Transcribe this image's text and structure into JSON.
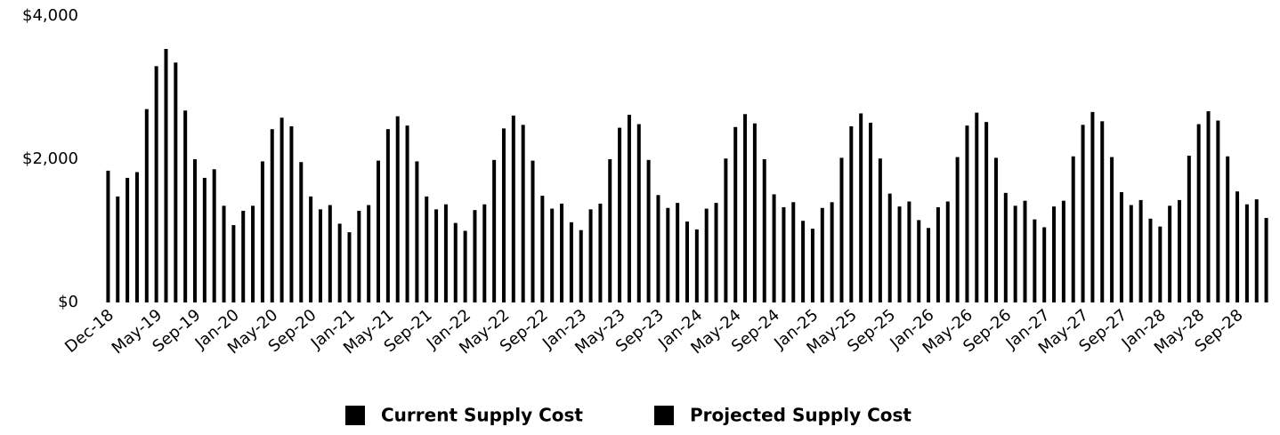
{
  "chart_data": {
    "type": "bar",
    "categories": [
      "Dec-18",
      null,
      null,
      null,
      null,
      "May-19",
      null,
      null,
      null,
      "Sep-19",
      null,
      null,
      null,
      "Jan-20",
      null,
      null,
      null,
      "May-20",
      null,
      null,
      null,
      "Sep-20",
      null,
      null,
      null,
      "Jan-21",
      null,
      null,
      null,
      "May-21",
      null,
      null,
      null,
      "Sep-21",
      null,
      null,
      null,
      "Jan-22",
      null,
      null,
      null,
      "May-22",
      null,
      null,
      null,
      "Sep-22",
      null,
      null,
      null,
      "Jan-23",
      null,
      null,
      null,
      "May-23",
      null,
      null,
      null,
      "Sep-23",
      null,
      null,
      null,
      "Jan-24",
      null,
      null,
      null,
      "May-24",
      null,
      null,
      null,
      "Sep-24",
      null,
      null,
      null,
      "Jan-25",
      null,
      null,
      null,
      "May-25",
      null,
      null,
      null,
      "Sep-25",
      null,
      null,
      null,
      "Jan-26",
      null,
      null,
      null,
      "May-26",
      null,
      null,
      null,
      "Sep-26",
      null,
      null,
      null,
      "Jan-27",
      null,
      null,
      null,
      "May-27",
      null,
      null,
      null,
      "Sep-27",
      null,
      null,
      null,
      "Jan-28",
      null,
      null,
      null,
      "May-28",
      null,
      null,
      null,
      "Sep-28",
      null,
      null,
      null
    ],
    "series": [
      {
        "name": "Current Supply Cost",
        "color": "#000000",
        "values": [
          1840,
          1480,
          1740,
          1820,
          2700,
          3300,
          3540,
          3350,
          2680,
          2000,
          1740,
          1860,
          1350,
          null,
          null,
          null,
          null,
          null,
          null,
          null,
          null,
          null,
          null,
          null,
          null,
          null,
          null,
          null,
          null,
          null,
          null,
          null,
          null,
          null,
          null,
          null,
          null,
          null,
          null,
          null,
          null,
          null,
          null,
          null,
          null,
          null,
          null,
          null,
          null,
          null,
          null,
          null,
          null,
          null,
          null,
          null,
          null,
          null,
          null,
          null,
          null,
          null,
          null,
          null,
          null,
          null,
          null,
          null,
          null,
          null,
          null,
          null,
          null,
          null,
          null,
          null,
          null,
          null,
          null,
          null,
          null,
          null,
          null,
          null,
          null,
          null,
          null,
          null,
          null,
          null,
          null,
          null,
          null,
          null,
          null,
          null,
          null,
          null,
          null,
          null,
          null,
          null,
          null,
          null,
          null,
          null,
          null,
          null,
          null,
          null,
          null,
          null,
          null,
          null,
          null,
          null,
          null,
          null,
          null,
          null,
          null
        ]
      },
      {
        "name": "Projected Supply Cost",
        "color": "#000000",
        "values": [
          null,
          null,
          null,
          null,
          null,
          null,
          null,
          null,
          null,
          null,
          null,
          null,
          null,
          1080,
          1280,
          1350,
          1970,
          2420,
          2580,
          2460,
          1960,
          1480,
          1300,
          1360,
          1100,
          980,
          1280,
          1360,
          1980,
          2420,
          2600,
          2470,
          1970,
          1480,
          1300,
          1370,
          1110,
          1000,
          1290,
          1370,
          1990,
          2430,
          2610,
          2480,
          1980,
          1490,
          1310,
          1380,
          1120,
          1010,
          1300,
          1380,
          2000,
          2440,
          2620,
          2490,
          1990,
          1500,
          1320,
          1390,
          1130,
          1020,
          1310,
          1390,
          2010,
          2450,
          2630,
          2500,
          2000,
          1510,
          1330,
          1400,
          1140,
          1030,
          1320,
          1400,
          2020,
          2460,
          2640,
          2510,
          2010,
          1520,
          1340,
          1410,
          1150,
          1040,
          1330,
          1410,
          2030,
          2470,
          2650,
          2520,
          2020,
          1530,
          1350,
          1420,
          1160,
          1050,
          1340,
          1420,
          2040,
          2480,
          2660,
          2530,
          2030,
          1540,
          1360,
          1430,
          1170,
          1060,
          1350,
          1430,
          2050,
          2490,
          2670,
          2540,
          2040,
          1550,
          1370,
          1440,
          1180
        ]
      }
    ],
    "ylim": [
      0,
      4000
    ],
    "yticks": [
      {
        "value": 0,
        "label": "$0"
      },
      {
        "value": 2000,
        "label": "$2,000"
      },
      {
        "value": 4000,
        "label": "$4,000"
      }
    ],
    "grid": false,
    "legend": "bottom"
  }
}
